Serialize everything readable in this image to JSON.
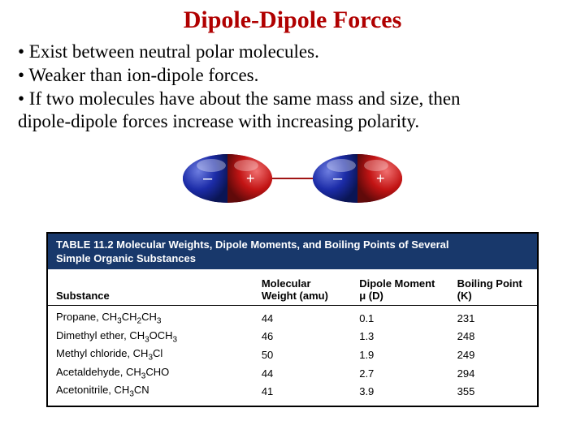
{
  "title": "Dipole-Dipole Forces",
  "title_color": "#b00000",
  "bullets": {
    "b1": "• Exist between neutral polar molecules.",
    "b2": "• Weaker than ion-dipole forces.",
    "b3a": "• If two molecules have about the same mass and size, then",
    "b3b": "dipole-dipole forces increase with increasing polarity."
  },
  "diagram": {
    "neg_color": "#1c2ca8",
    "pos_color": "#c21414",
    "mid_color": "#8a3a8a",
    "highlight": "#ffffff",
    "shadow": "#000000",
    "minus": "–",
    "plus": "+",
    "bond_color": "#a01414"
  },
  "table": {
    "header_bg": "#18386b",
    "title_l1": "TABLE 11.2   Molecular Weights, Dipole Moments, and Boiling Points of Several",
    "title_l2": "Simple Organic Substances",
    "columns": {
      "c0": "Substance",
      "c1a": "Molecular",
      "c1b": "Weight (amu)",
      "c2a": "Dipole Moment",
      "c2b": "μ (D)",
      "c3a": "Boiling Point",
      "c3b": "(K)"
    },
    "rows": [
      {
        "name_a": "Propane, CH",
        "name_b": "3",
        "name_c": "CH",
        "name_d": "2",
        "name_e": "CH",
        "name_f": "3",
        "mw": "44",
        "dm": "0.1",
        "bp": "231"
      },
      {
        "name_a": "Dimethyl ether, CH",
        "name_b": "3",
        "name_c": "OCH",
        "name_d": "3",
        "name_e": "",
        "name_f": "",
        "mw": "46",
        "dm": "1.3",
        "bp": "248"
      },
      {
        "name_a": "Methyl chloride, CH",
        "name_b": "3",
        "name_c": "Cl",
        "name_d": "",
        "name_e": "",
        "name_f": "",
        "mw": "50",
        "dm": "1.9",
        "bp": "249"
      },
      {
        "name_a": "Acetaldehyde, CH",
        "name_b": "3",
        "name_c": "CHO",
        "name_d": "",
        "name_e": "",
        "name_f": "",
        "mw": "44",
        "dm": "2.7",
        "bp": "294"
      },
      {
        "name_a": "Acetonitrile, CH",
        "name_b": "3",
        "name_c": "CN",
        "name_d": "",
        "name_e": "",
        "name_f": "",
        "mw": "41",
        "dm": "3.9",
        "bp": "355"
      }
    ]
  }
}
